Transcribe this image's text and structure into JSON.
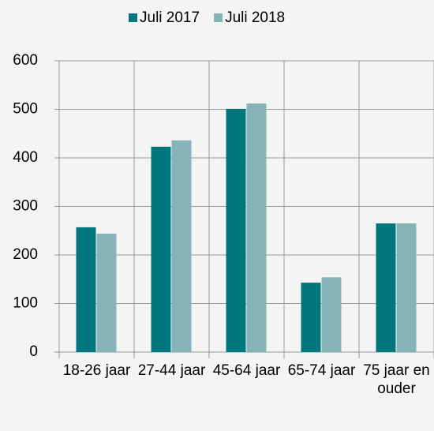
{
  "chart_data": {
    "type": "bar",
    "categories": [
      "18-26 jaar",
      "27-44 jaar",
      "45-64 jaar",
      "65-74 jaar",
      "75 jaar en ouder"
    ],
    "series": [
      {
        "name": "Juli 2017",
        "color": "#00777c",
        "values": [
          257,
          423,
          501,
          143,
          265
        ]
      },
      {
        "name": "Juli 2018",
        "color": "#86b3b7",
        "values": [
          244,
          436,
          512,
          154,
          265
        ]
      }
    ],
    "ylim": [
      0,
      600
    ],
    "yticks": [
      0,
      100,
      200,
      300,
      400,
      500,
      600
    ],
    "grid": true,
    "legend": "top"
  }
}
